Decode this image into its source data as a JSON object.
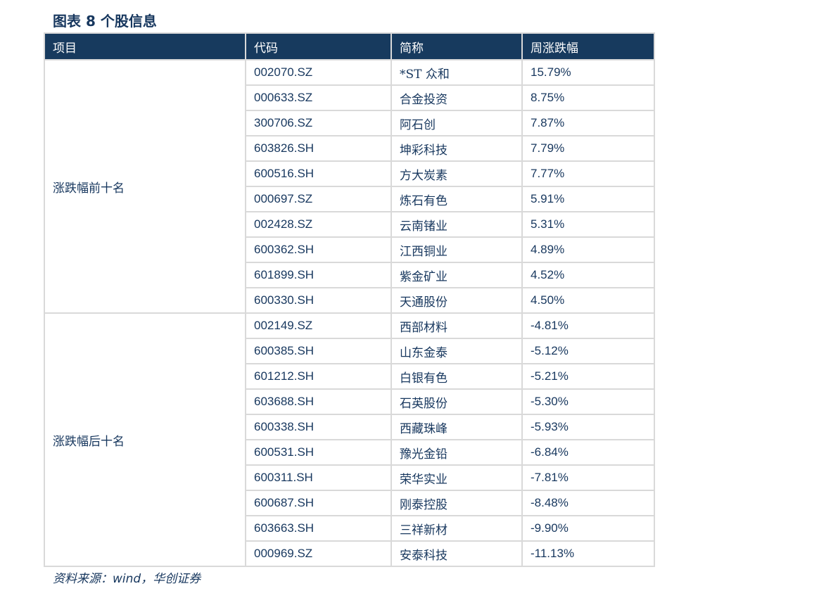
{
  "title": "图表 8 个股信息",
  "table": {
    "headers": [
      "项目",
      "代码",
      "简称",
      "周涨跌幅"
    ],
    "groups": [
      {
        "label": "涨跌幅前十名",
        "rows": [
          {
            "code": "002070.SZ",
            "name": "*ST 众和",
            "change": "15.79%"
          },
          {
            "code": "000633.SZ",
            "name": "合金投资",
            "change": "8.75%"
          },
          {
            "code": "300706.SZ",
            "name": "阿石创",
            "change": "7.87%"
          },
          {
            "code": "603826.SH",
            "name": "坤彩科技",
            "change": "7.79%"
          },
          {
            "code": "600516.SH",
            "name": "方大炭素",
            "change": "7.77%"
          },
          {
            "code": "000697.SZ",
            "name": "炼石有色",
            "change": "5.91%"
          },
          {
            "code": "002428.SZ",
            "name": "云南锗业",
            "change": "5.31%"
          },
          {
            "code": "600362.SH",
            "name": "江西铜业",
            "change": "4.89%"
          },
          {
            "code": "601899.SH",
            "name": "紫金矿业",
            "change": "4.52%"
          },
          {
            "code": "600330.SH",
            "name": "天通股份",
            "change": "4.50%"
          }
        ]
      },
      {
        "label": "涨跌幅后十名",
        "rows": [
          {
            "code": "002149.SZ",
            "name": "西部材料",
            "change": "-4.81%"
          },
          {
            "code": "600385.SH",
            "name": "山东金泰",
            "change": "-5.12%"
          },
          {
            "code": "601212.SH",
            "name": "白银有色",
            "change": "-5.21%"
          },
          {
            "code": "603688.SH",
            "name": "石英股份",
            "change": "-5.30%"
          },
          {
            "code": "600338.SH",
            "name": "西藏珠峰",
            "change": "-5.93%"
          },
          {
            "code": "600531.SH",
            "name": "豫光金铅",
            "change": "-6.84%"
          },
          {
            "code": "600311.SH",
            "name": "荣华实业",
            "change": "-7.81%"
          },
          {
            "code": "600687.SH",
            "name": "刚泰控股",
            "change": "-8.48%"
          },
          {
            "code": "603663.SH",
            "name": "三祥新材",
            "change": "-9.90%"
          },
          {
            "code": "000969.SZ",
            "name": "安泰科技",
            "change": "-11.13%"
          }
        ]
      }
    ]
  },
  "source": "资料来源：wind，华创证券",
  "colors": {
    "header_bg": "#173a5e",
    "text": "#17375e",
    "border": "#d9d9d9"
  }
}
